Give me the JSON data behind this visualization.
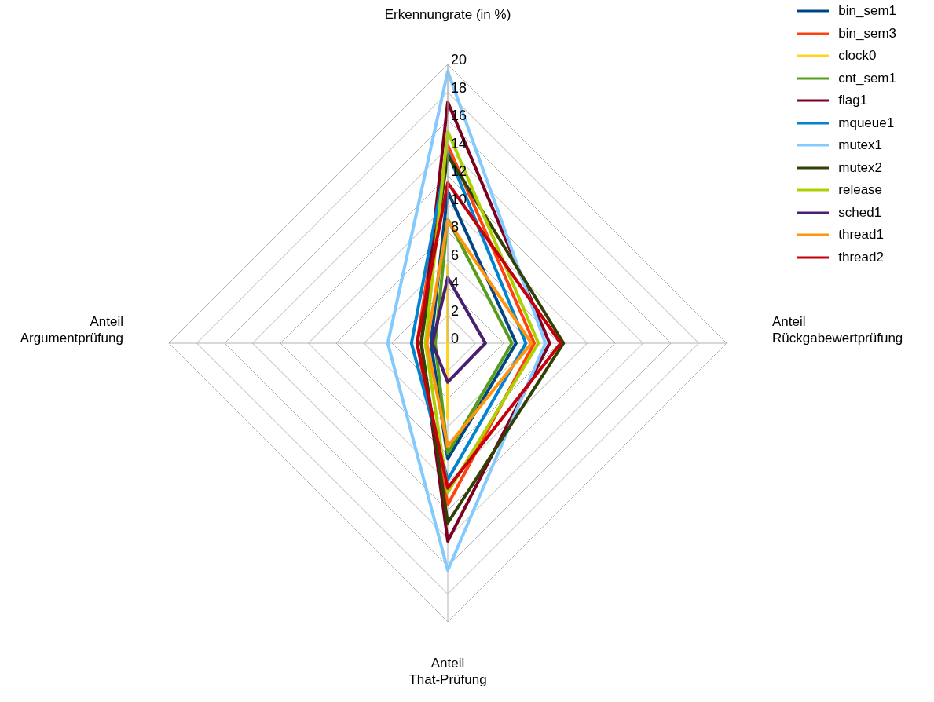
{
  "chart_data": {
    "type": "radar",
    "categories": [
      "Erkennungrate (in %)",
      "Anteil\nRückgabewertprüfung",
      "Anteil\nThat-Prüfung",
      "Anteil\nArgumentprüfung"
    ],
    "series": [
      {
        "name": "bin_sem1",
        "color": "#004586",
        "values": [
          10.9,
          4.9,
          8.3,
          1.2
        ]
      },
      {
        "name": "bin_sem3",
        "color": "#ff420e",
        "values": [
          14.2,
          6.2,
          11.6,
          2.2
        ]
      },
      {
        "name": "clock0",
        "color": "#ffd320",
        "values": [
          5.6,
          0,
          5.4,
          0
        ]
      },
      {
        "name": "cnt_sem1",
        "color": "#579d1c",
        "values": [
          8.9,
          4.6,
          7.9,
          0.9
        ]
      },
      {
        "name": "flag1",
        "color": "#7e0021",
        "values": [
          17.3,
          7.3,
          14.2,
          1.9
        ]
      },
      {
        "name": "mqueue1",
        "color": "#0084d1",
        "values": [
          13.7,
          5.6,
          9.8,
          2.6
        ]
      },
      {
        "name": "mutex1",
        "color": "#83caff",
        "values": [
          19.5,
          7,
          16.3,
          4.3
        ]
      },
      {
        "name": "mutex2",
        "color": "#314004",
        "values": [
          13.5,
          8.3,
          12.9,
          1.9
        ]
      },
      {
        "name": "release",
        "color": "#aecf00",
        "values": [
          15.2,
          6.5,
          10.7,
          1.6
        ]
      },
      {
        "name": "sched1",
        "color": "#4b1f6f",
        "values": [
          4.7,
          2.7,
          2.8,
          1.1
        ]
      },
      {
        "name": "thread1",
        "color": "#ff950e",
        "values": [
          8.8,
          6,
          7.4,
          1.5
        ]
      },
      {
        "name": "thread2",
        "color": "#c5000b",
        "values": [
          11.5,
          8.1,
          10.4,
          2.2
        ]
      }
    ],
    "ylim": [
      0,
      20
    ],
    "yticks": [
      0,
      2,
      4,
      6,
      8,
      10,
      12,
      14,
      16,
      18,
      20
    ],
    "grid": true,
    "legend": "top right",
    "marker": "none",
    "line_style": "solid"
  }
}
